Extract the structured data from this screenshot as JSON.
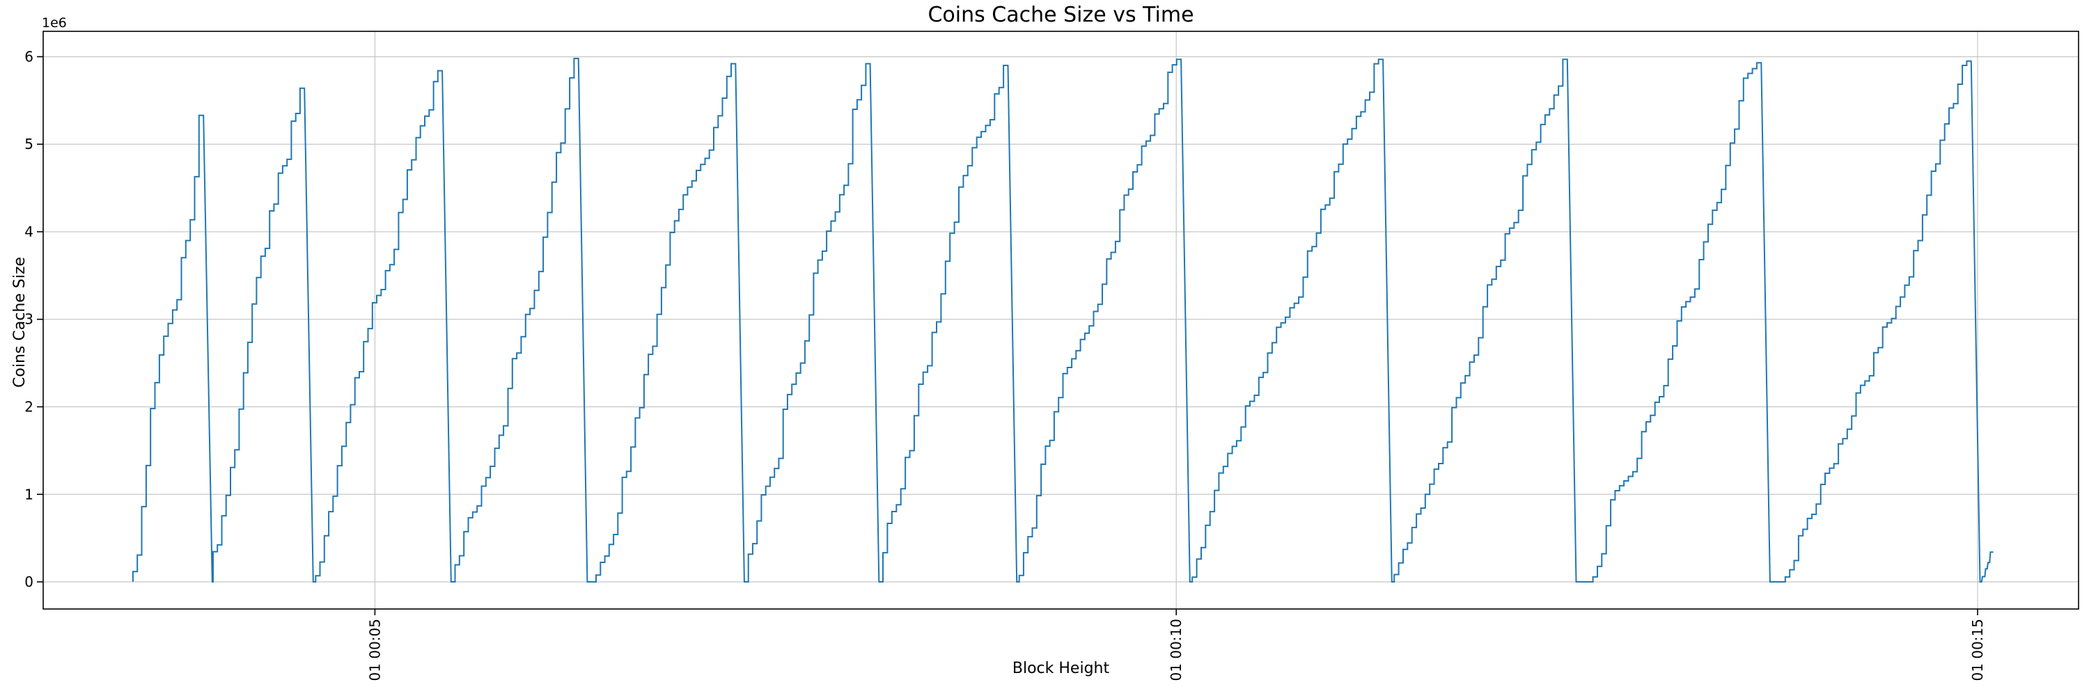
{
  "chart_data": {
    "type": "line",
    "title": "Coins Cache Size vs Time",
    "xlabel": "Block Height",
    "ylabel": "Coins Cache Size",
    "y_offset_text": "1e6",
    "legend": null,
    "grid": true,
    "colors": {
      "line": "#1f77b4",
      "grid": "#c6c6c6",
      "spine": "#000000",
      "background": "#ffffff",
      "text": "#000000"
    },
    "x_axis": {
      "unit": "time (dd hh:mm), minutes since 01 00:00",
      "lim": [
        2.93,
        15.63
      ],
      "ticks": [
        {
          "pos": 5,
          "label": "01 00:05"
        },
        {
          "pos": 10,
          "label": "01 00:10"
        },
        {
          "pos": 15,
          "label": "01 00:15"
        }
      ]
    },
    "y_axis": {
      "scale_factor": "1e6",
      "lim": [
        -0.31,
        6.29
      ],
      "ticks": [
        {
          "pos": 0,
          "label": "0"
        },
        {
          "pos": 1,
          "label": "1"
        },
        {
          "pos": 2,
          "label": "2"
        },
        {
          "pos": 3,
          "label": "3"
        },
        {
          "pos": 4,
          "label": "4"
        },
        {
          "pos": 5,
          "label": "5"
        },
        {
          "pos": 6,
          "label": "6"
        }
      ]
    },
    "series": [
      {
        "name": "coins-cache-size",
        "shape": "sawtooth-staircase",
        "drop_width_min": 0.055,
        "teeth": [
          {
            "start": 3.49,
            "peak": 3.93,
            "value": 5.33
          },
          {
            "start": 3.99,
            "peak": 4.56,
            "value": 5.64
          },
          {
            "start": 4.63,
            "peak": 5.42,
            "value": 5.84
          },
          {
            "start": 5.5,
            "peak": 6.27,
            "value": 5.98
          },
          {
            "start": 6.38,
            "peak": 7.25,
            "value": 5.92
          },
          {
            "start": 7.33,
            "peak": 8.09,
            "value": 5.92
          },
          {
            "start": 8.17,
            "peak": 8.95,
            "value": 5.9
          },
          {
            "start": 9.02,
            "peak": 10.03,
            "value": 5.97
          },
          {
            "start": 10.1,
            "peak": 11.29,
            "value": 5.97
          },
          {
            "start": 11.36,
            "peak": 12.44,
            "value": 5.97
          },
          {
            "start": 12.6,
            "peak": 13.65,
            "value": 5.93
          },
          {
            "start": 13.8,
            "peak": 14.96,
            "value": 5.95
          }
        ],
        "tail_points": [
          [
            15.025,
            0.0
          ],
          [
            15.03,
            0.06
          ],
          [
            15.045,
            0.06
          ],
          [
            15.05,
            0.15
          ],
          [
            15.06,
            0.15
          ],
          [
            15.065,
            0.22
          ],
          [
            15.075,
            0.22
          ],
          [
            15.08,
            0.34
          ],
          [
            15.098,
            0.34
          ]
        ]
      }
    ]
  }
}
